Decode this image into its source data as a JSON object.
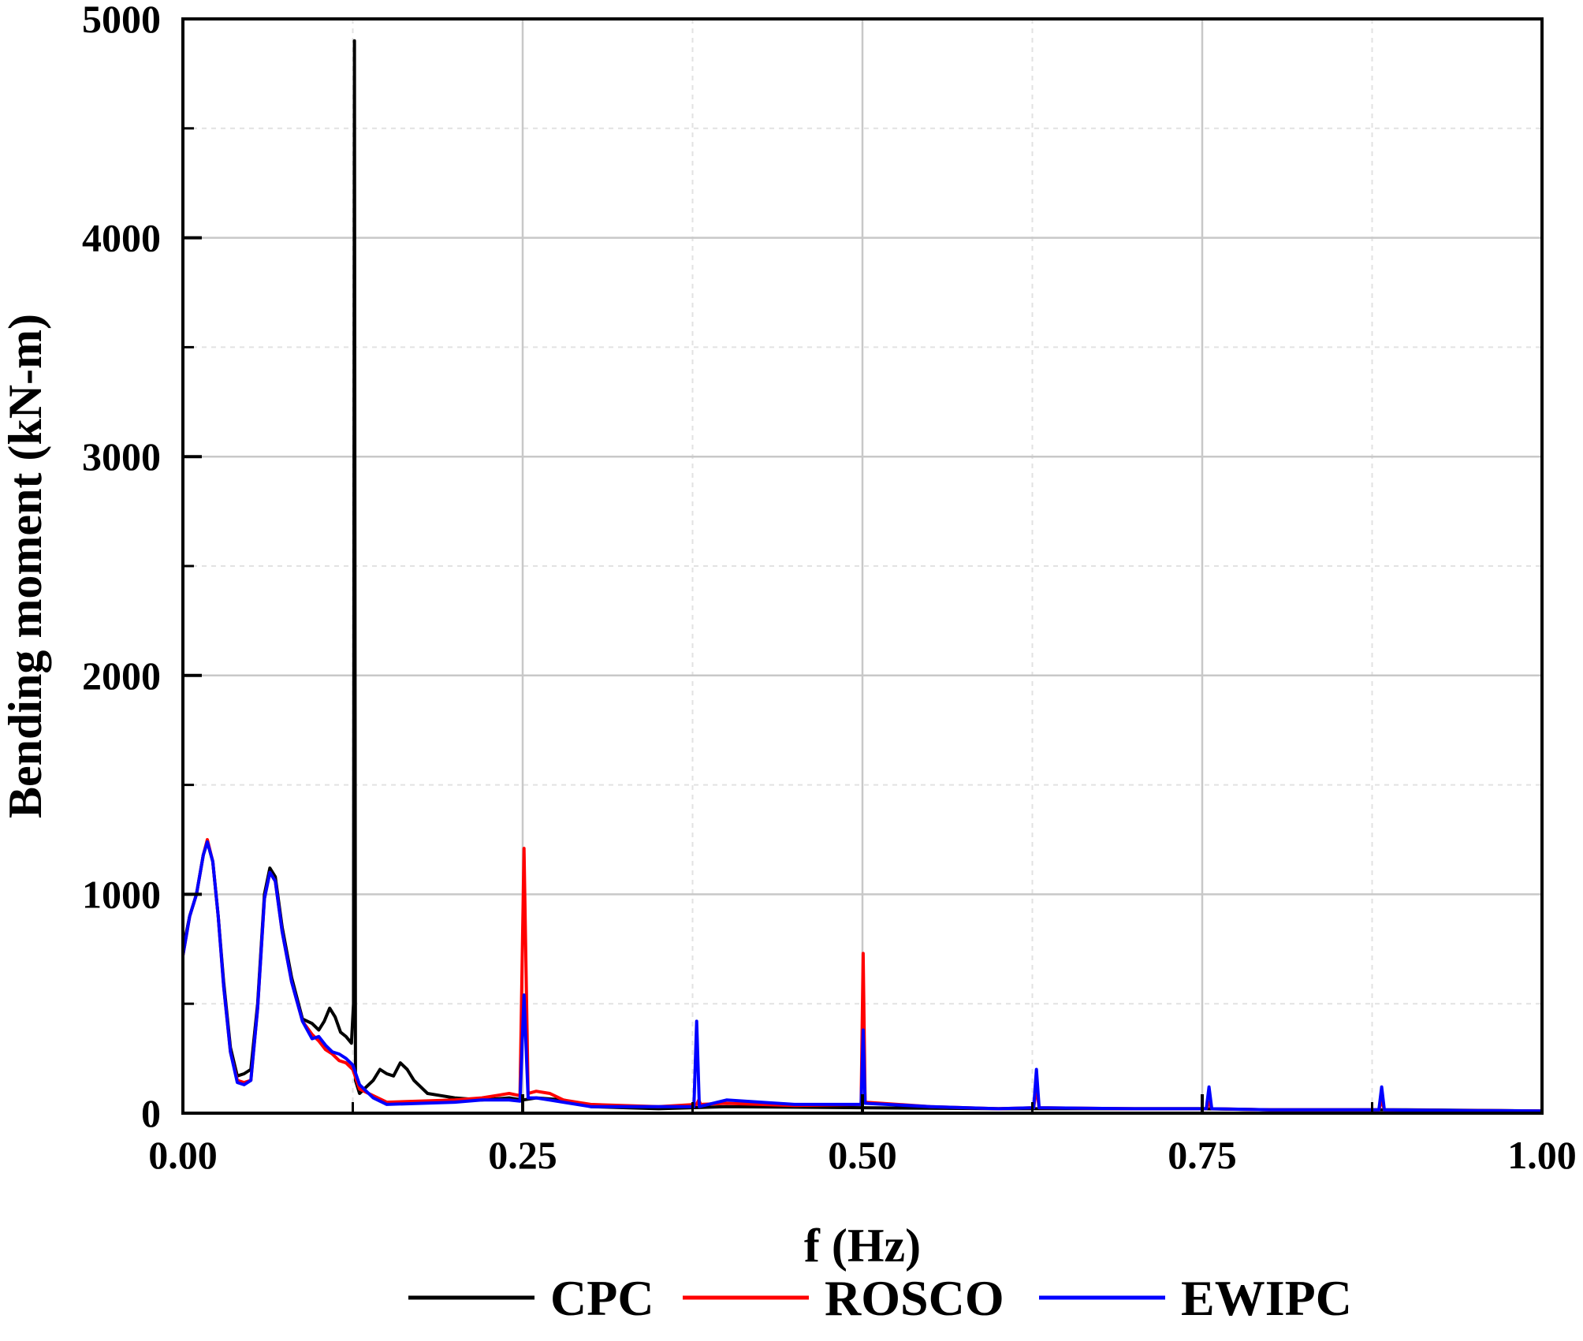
{
  "chart_data": {
    "type": "line",
    "title": "",
    "xlabel": "f (Hz)",
    "ylabel": "Bending moment (kN-m)",
    "xlim": [
      0,
      1
    ],
    "ylim": [
      0,
      5000
    ],
    "x_ticks": [
      0,
      0.25,
      0.5,
      0.75,
      1.0
    ],
    "x_tick_labels": [
      "0.00",
      "0.25",
      "0.50",
      "0.75",
      "1.00"
    ],
    "y_ticks": [
      0,
      1000,
      2000,
      3000,
      4000,
      5000
    ],
    "y_tick_labels": [
      "0",
      "1000",
      "2000",
      "3000",
      "4000",
      "5000"
    ],
    "grid": true,
    "legend_position": "bottom",
    "series": [
      {
        "name": "CPC",
        "color": "#000000",
        "points": [
          [
            0,
            750
          ],
          [
            0.005,
            900
          ],
          [
            0.01,
            1000
          ],
          [
            0.015,
            1180
          ],
          [
            0.018,
            1240
          ],
          [
            0.022,
            1150
          ],
          [
            0.026,
            900
          ],
          [
            0.03,
            600
          ],
          [
            0.035,
            300
          ],
          [
            0.04,
            170
          ],
          [
            0.045,
            180
          ],
          [
            0.05,
            200
          ],
          [
            0.055,
            500
          ],
          [
            0.06,
            1000
          ],
          [
            0.064,
            1120
          ],
          [
            0.068,
            1080
          ],
          [
            0.073,
            850
          ],
          [
            0.08,
            620
          ],
          [
            0.088,
            430
          ],
          [
            0.095,
            410
          ],
          [
            0.1,
            380
          ],
          [
            0.104,
            420
          ],
          [
            0.108,
            480
          ],
          [
            0.112,
            440
          ],
          [
            0.116,
            370
          ],
          [
            0.12,
            350
          ],
          [
            0.124,
            320
          ],
          [
            0.1255,
            500
          ],
          [
            0.1262,
            4900
          ],
          [
            0.127,
            150
          ],
          [
            0.13,
            90
          ],
          [
            0.135,
            120
          ],
          [
            0.14,
            150
          ],
          [
            0.145,
            200
          ],
          [
            0.15,
            180
          ],
          [
            0.155,
            170
          ],
          [
            0.16,
            230
          ],
          [
            0.165,
            200
          ],
          [
            0.17,
            150
          ],
          [
            0.18,
            90
          ],
          [
            0.19,
            80
          ],
          [
            0.2,
            70
          ],
          [
            0.22,
            60
          ],
          [
            0.24,
            70
          ],
          [
            0.25,
            60
          ],
          [
            0.26,
            70
          ],
          [
            0.28,
            60
          ],
          [
            0.3,
            30
          ],
          [
            0.35,
            20
          ],
          [
            0.4,
            30
          ],
          [
            0.5,
            25
          ],
          [
            0.6,
            20
          ],
          [
            0.7,
            20
          ],
          [
            0.75,
            20
          ],
          [
            0.8,
            15
          ],
          [
            0.9,
            15
          ],
          [
            1.0,
            10
          ]
        ]
      },
      {
        "name": "ROSCO",
        "color": "#ff0000",
        "points": [
          [
            0,
            720
          ],
          [
            0.005,
            900
          ],
          [
            0.01,
            1000
          ],
          [
            0.015,
            1180
          ],
          [
            0.018,
            1250
          ],
          [
            0.022,
            1150
          ],
          [
            0.026,
            900
          ],
          [
            0.03,
            580
          ],
          [
            0.035,
            280
          ],
          [
            0.04,
            150
          ],
          [
            0.045,
            140
          ],
          [
            0.05,
            150
          ],
          [
            0.055,
            480
          ],
          [
            0.06,
            980
          ],
          [
            0.064,
            1100
          ],
          [
            0.068,
            1060
          ],
          [
            0.073,
            830
          ],
          [
            0.08,
            600
          ],
          [
            0.088,
            420
          ],
          [
            0.095,
            360
          ],
          [
            0.1,
            330
          ],
          [
            0.105,
            290
          ],
          [
            0.11,
            270
          ],
          [
            0.115,
            240
          ],
          [
            0.12,
            230
          ],
          [
            0.125,
            200
          ],
          [
            0.13,
            110
          ],
          [
            0.14,
            80
          ],
          [
            0.15,
            50
          ],
          [
            0.2,
            60
          ],
          [
            0.22,
            70
          ],
          [
            0.24,
            90
          ],
          [
            0.248,
            80
          ],
          [
            0.251,
            1210
          ],
          [
            0.254,
            90
          ],
          [
            0.26,
            100
          ],
          [
            0.27,
            90
          ],
          [
            0.28,
            60
          ],
          [
            0.3,
            40
          ],
          [
            0.35,
            30
          ],
          [
            0.378,
            40
          ],
          [
            0.3795,
            60
          ],
          [
            0.381,
            40
          ],
          [
            0.4,
            45
          ],
          [
            0.45,
            35
          ],
          [
            0.499,
            40
          ],
          [
            0.5005,
            730
          ],
          [
            0.502,
            50
          ],
          [
            0.55,
            30
          ],
          [
            0.6,
            20
          ],
          [
            0.626,
            25
          ],
          [
            0.628,
            120
          ],
          [
            0.63,
            25
          ],
          [
            0.7,
            20
          ],
          [
            0.753,
            20
          ],
          [
            0.755,
            50
          ],
          [
            0.757,
            20
          ],
          [
            0.8,
            15
          ],
          [
            0.88,
            15
          ],
          [
            0.882,
            60
          ],
          [
            0.884,
            15
          ],
          [
            0.95,
            12
          ],
          [
            1.0,
            10
          ]
        ]
      },
      {
        "name": "EWIPC",
        "color": "#0000ff",
        "points": [
          [
            0,
            720
          ],
          [
            0.005,
            900
          ],
          [
            0.01,
            1000
          ],
          [
            0.015,
            1180
          ],
          [
            0.018,
            1240
          ],
          [
            0.022,
            1150
          ],
          [
            0.026,
            900
          ],
          [
            0.03,
            580
          ],
          [
            0.035,
            280
          ],
          [
            0.04,
            140
          ],
          [
            0.045,
            130
          ],
          [
            0.05,
            150
          ],
          [
            0.055,
            480
          ],
          [
            0.06,
            980
          ],
          [
            0.064,
            1100
          ],
          [
            0.068,
            1060
          ],
          [
            0.073,
            830
          ],
          [
            0.08,
            600
          ],
          [
            0.088,
            420
          ],
          [
            0.095,
            340
          ],
          [
            0.1,
            350
          ],
          [
            0.105,
            310
          ],
          [
            0.11,
            280
          ],
          [
            0.115,
            270
          ],
          [
            0.12,
            250
          ],
          [
            0.125,
            220
          ],
          [
            0.13,
            130
          ],
          [
            0.14,
            70
          ],
          [
            0.15,
            40
          ],
          [
            0.2,
            50
          ],
          [
            0.22,
            60
          ],
          [
            0.24,
            60
          ],
          [
            0.248,
            55
          ],
          [
            0.251,
            540
          ],
          [
            0.254,
            70
          ],
          [
            0.26,
            70
          ],
          [
            0.28,
            50
          ],
          [
            0.3,
            30
          ],
          [
            0.35,
            30
          ],
          [
            0.376,
            30
          ],
          [
            0.378,
            420
          ],
          [
            0.38,
            30
          ],
          [
            0.4,
            60
          ],
          [
            0.45,
            40
          ],
          [
            0.499,
            40
          ],
          [
            0.5005,
            380
          ],
          [
            0.502,
            45
          ],
          [
            0.55,
            30
          ],
          [
            0.6,
            20
          ],
          [
            0.626,
            25
          ],
          [
            0.628,
            200
          ],
          [
            0.63,
            25
          ],
          [
            0.7,
            20
          ],
          [
            0.753,
            20
          ],
          [
            0.755,
            120
          ],
          [
            0.757,
            20
          ],
          [
            0.8,
            15
          ],
          [
            0.88,
            15
          ],
          [
            0.882,
            120
          ],
          [
            0.884,
            15
          ],
          [
            0.95,
            12
          ],
          [
            1.0,
            10
          ]
        ]
      }
    ]
  }
}
